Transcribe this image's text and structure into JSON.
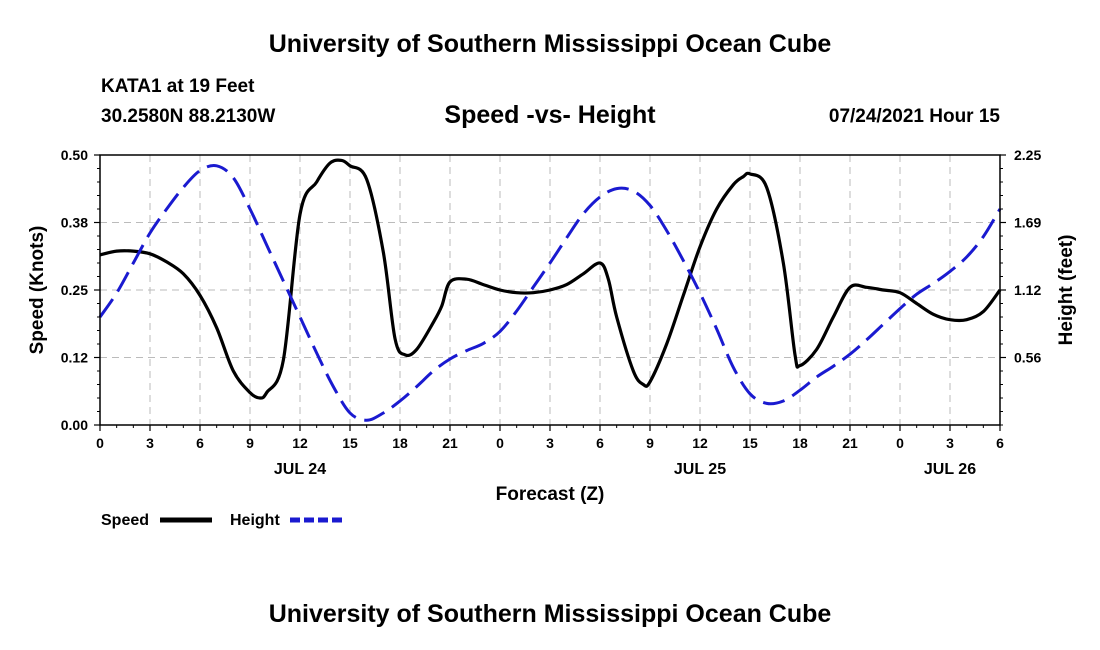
{
  "header": {
    "title_top": "University of Southern Mississippi Ocean Cube",
    "title_bottom": "University of Southern Mississippi Ocean Cube",
    "station": "KATA1 at 19 Feet",
    "coords": "30.2580N  88.2130W",
    "subtitle": "Speed -vs- Height",
    "datetime": "07/24/2021 Hour 15"
  },
  "chart_data": {
    "type": "line",
    "title": "Speed -vs- Height",
    "xlabel": "Forecast (Z)",
    "ylabel_left": "Speed (Knots)",
    "ylabel_right": "Height (feet)",
    "x_range_hours": [
      0,
      54
    ],
    "ylim_left": [
      0,
      0.5
    ],
    "ylim_right": [
      0,
      2.25
    ],
    "x_ticks": [
      {
        "h": 0,
        "label": "0"
      },
      {
        "h": 3,
        "label": "3"
      },
      {
        "h": 6,
        "label": "6"
      },
      {
        "h": 9,
        "label": "9"
      },
      {
        "h": 12,
        "label": "12"
      },
      {
        "h": 15,
        "label": "15"
      },
      {
        "h": 18,
        "label": "18"
      },
      {
        "h": 21,
        "label": "21"
      },
      {
        "h": 24,
        "label": "0"
      },
      {
        "h": 27,
        "label": "3"
      },
      {
        "h": 30,
        "label": "6"
      },
      {
        "h": 33,
        "label": "9"
      },
      {
        "h": 36,
        "label": "12"
      },
      {
        "h": 39,
        "label": "15"
      },
      {
        "h": 42,
        "label": "18"
      },
      {
        "h": 45,
        "label": "21"
      },
      {
        "h": 48,
        "label": "0"
      },
      {
        "h": 51,
        "label": "3"
      },
      {
        "h": 54,
        "label": "6"
      }
    ],
    "date_labels": [
      {
        "h": 12,
        "label": "JUL 24"
      },
      {
        "h": 36,
        "label": "JUL 25"
      },
      {
        "h": 51,
        "label": "JUL 26"
      }
    ],
    "y_ticks_left": [
      {
        "v": 0.0,
        "label": "0.00"
      },
      {
        "v": 0.125,
        "label": "0.12"
      },
      {
        "v": 0.25,
        "label": "0.25"
      },
      {
        "v": 0.375,
        "label": "0.38"
      },
      {
        "v": 0.5,
        "label": "0.50"
      }
    ],
    "y_ticks_right": [
      {
        "v": 0.5625,
        "label": "0.56"
      },
      {
        "v": 1.125,
        "label": "1.12"
      },
      {
        "v": 1.6875,
        "label": "1.69"
      },
      {
        "v": 2.25,
        "label": "2.25"
      }
    ],
    "grid": true,
    "series": [
      {
        "name": "Speed",
        "axis": "left",
        "color": "#000000",
        "dash": "solid",
        "x": [
          0,
          1,
          2,
          3,
          4,
          5,
          6,
          7,
          8,
          9,
          9.6,
          10,
          11,
          12,
          13,
          13.8,
          14.5,
          15,
          16,
          17,
          17.7,
          18.3,
          19,
          20,
          20.5,
          21,
          22,
          23,
          24,
          25,
          26,
          27,
          28,
          29,
          30,
          30.5,
          31,
          32,
          32.6,
          33,
          34,
          35,
          36,
          37,
          38,
          38.6,
          39,
          40,
          41,
          41.7,
          42,
          43,
          44,
          45,
          46,
          47,
          48,
          49,
          50,
          51,
          52,
          53,
          54
        ],
        "values": [
          0.315,
          0.322,
          0.322,
          0.317,
          0.302,
          0.28,
          0.24,
          0.18,
          0.1,
          0.06,
          0.05,
          0.06,
          0.12,
          0.39,
          0.45,
          0.485,
          0.49,
          0.48,
          0.455,
          0.32,
          0.16,
          0.13,
          0.14,
          0.19,
          0.22,
          0.265,
          0.27,
          0.26,
          0.25,
          0.245,
          0.245,
          0.25,
          0.26,
          0.28,
          0.3,
          0.27,
          0.2,
          0.1,
          0.075,
          0.08,
          0.15,
          0.24,
          0.33,
          0.4,
          0.445,
          0.46,
          0.465,
          0.44,
          0.3,
          0.13,
          0.11,
          0.14,
          0.2,
          0.255,
          0.255,
          0.25,
          0.245,
          0.225,
          0.205,
          0.195,
          0.195,
          0.21,
          0.25
        ]
      },
      {
        "name": "Height",
        "axis": "right",
        "color": "#1a1ad0",
        "dash": "dashed",
        "x": [
          0,
          1,
          2,
          3,
          4,
          5,
          6,
          7,
          8,
          9,
          10,
          11,
          12,
          13,
          14,
          15,
          16,
          17,
          18,
          19,
          20,
          21,
          22,
          23,
          24,
          25,
          26,
          27,
          28,
          29,
          30,
          31,
          32,
          33,
          34,
          35,
          36,
          37,
          38,
          39,
          40,
          41,
          42,
          43,
          44,
          45,
          46,
          47,
          48,
          49,
          50,
          51,
          52,
          53,
          54
        ],
        "values": [
          0.9,
          1.1,
          1.35,
          1.6,
          1.8,
          1.98,
          2.12,
          2.16,
          2.06,
          1.8,
          1.5,
          1.2,
          0.9,
          0.6,
          0.32,
          0.1,
          0.04,
          0.1,
          0.2,
          0.32,
          0.45,
          0.55,
          0.62,
          0.68,
          0.78,
          0.95,
          1.15,
          1.35,
          1.56,
          1.76,
          1.9,
          1.97,
          1.95,
          1.83,
          1.62,
          1.37,
          1.1,
          0.8,
          0.48,
          0.26,
          0.18,
          0.2,
          0.29,
          0.4,
          0.49,
          0.59,
          0.71,
          0.84,
          0.97,
          1.09,
          1.18,
          1.28,
          1.4,
          1.57,
          1.8
        ]
      }
    ]
  },
  "legend": {
    "speed_label": "Speed",
    "height_label": "Height"
  }
}
